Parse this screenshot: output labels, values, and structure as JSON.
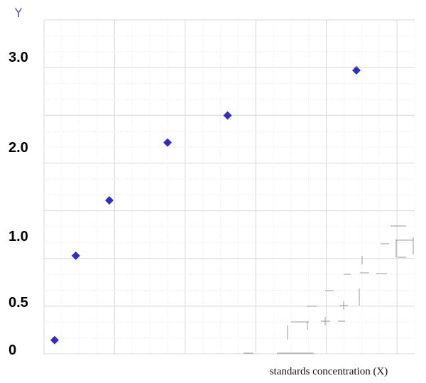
{
  "chart_data": {
    "type": "scatter",
    "title": "",
    "xlabel": "standards concentration (X)",
    "ylabel": "Y",
    "y_ticks": [
      {
        "value": 3.0,
        "label": "3.0"
      },
      {
        "value": 2.0,
        "label": "2.0"
      },
      {
        "value": 1.0,
        "label": "1.0"
      },
      {
        "value": 0.5,
        "label": "0.5"
      },
      {
        "value": 0,
        "label": "0"
      }
    ],
    "x_ticks": [],
    "xlim": [
      0,
      10.5
    ],
    "ylim": [
      0,
      3.0
    ],
    "grid": true,
    "legend": "none",
    "series": [
      {
        "color": "#2f2fbf",
        "marker": "diamond",
        "points": [
          {
            "x": 0.3,
            "y": 0.1
          },
          {
            "x": 0.9,
            "y": 0.85
          },
          {
            "x": 1.85,
            "y": 1.4
          },
          {
            "x": 3.5,
            "y": 2.05
          },
          {
            "x": 5.2,
            "y": 2.35
          },
          {
            "x": 8.85,
            "y": 2.85
          }
        ]
      }
    ]
  }
}
